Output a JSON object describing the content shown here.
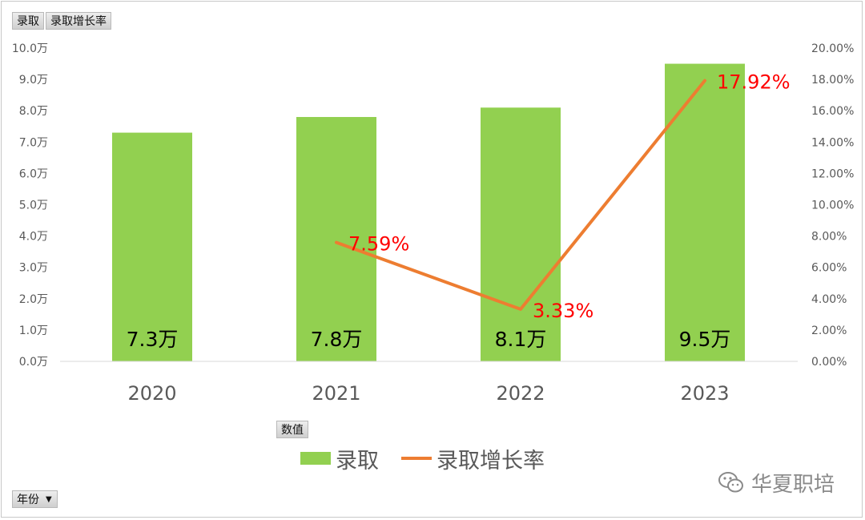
{
  "pivot_fields": {
    "data_fields": [
      "录取",
      "录取增长率"
    ],
    "values_label": "数值",
    "row_field": "年份"
  },
  "watermark": {
    "text": "华夏职培"
  },
  "colors": {
    "bar": "#92d050",
    "line": "#ed7d31",
    "line_label": "#ff0000",
    "grid": "#d9d9d9"
  },
  "chart_data": {
    "type": "bar",
    "categories": [
      "2020",
      "2021",
      "2022",
      "2023"
    ],
    "series": [
      {
        "name": "录取",
        "type": "bar",
        "axis": "left",
        "values": [
          7.3,
          7.8,
          8.1,
          9.5
        ],
        "data_labels": [
          "7.3万",
          "7.8万",
          "8.1万",
          "9.5万"
        ]
      },
      {
        "name": "录取增长率",
        "type": "line",
        "axis": "right",
        "values": [
          null,
          7.59,
          3.33,
          17.92
        ],
        "data_labels": [
          "",
          "7.59%",
          "3.33%",
          "17.92%"
        ]
      }
    ],
    "y_left": {
      "ylim": [
        0,
        10
      ],
      "ticks": [
        "0.0万",
        "1.0万",
        "2.0万",
        "3.0万",
        "4.0万",
        "5.0万",
        "6.0万",
        "7.0万",
        "8.0万",
        "9.0万",
        "10.0万"
      ]
    },
    "y_right": {
      "ylim": [
        0,
        20
      ],
      "ticks": [
        "0.00%",
        "2.00%",
        "4.00%",
        "6.00%",
        "8.00%",
        "10.00%",
        "12.00%",
        "14.00%",
        "16.00%",
        "18.00%",
        "20.00%"
      ]
    },
    "legend": {
      "placement": "bottom",
      "entries": [
        "录取",
        "录取增长率"
      ]
    },
    "grid": false
  }
}
